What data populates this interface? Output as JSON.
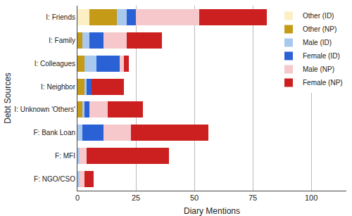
{
  "chart_data": {
    "type": "bar",
    "orientation": "horizontal",
    "stacked": true,
    "grid": true,
    "legend": "top right",
    "x_label": "Diary Mentions",
    "y_label": "Debt Sources",
    "categories": [
      "I: Friends",
      "I: Family",
      "I: Colleagues",
      "I: Neighbor",
      "I: Unknown 'Others'",
      "F: Bank Loan",
      "F: MFI",
      "F: NGO/CSO"
    ],
    "series": [
      {
        "name": "Other (ID)",
        "color": "#fcefc4",
        "values": [
          5,
          0,
          0,
          0,
          0,
          0,
          0,
          0
        ]
      },
      {
        "name": "Other (NP)",
        "color": "#c49a17",
        "values": [
          12,
          2,
          3,
          3,
          2,
          0,
          0,
          0
        ]
      },
      {
        "name": "Male (ID)",
        "color": "#a9c8ee",
        "values": [
          4,
          3,
          5,
          1,
          1,
          2,
          1,
          1
        ]
      },
      {
        "name": "Female (ID)",
        "color": "#2a62d6",
        "values": [
          4,
          6,
          10,
          2,
          2,
          9,
          0,
          0
        ]
      },
      {
        "name": "Male (NP)",
        "color": "#f6c7cb",
        "values": [
          27,
          10,
          2,
          0,
          8,
          12,
          3,
          2
        ]
      },
      {
        "name": "Female (NP)",
        "color": "#cc1f1f",
        "values": [
          29,
          15,
          2,
          14,
          15,
          33,
          35,
          4
        ]
      }
    ],
    "xlim": [
      0,
      115
    ],
    "xticks": [
      0,
      25,
      50,
      75,
      100
    ]
  }
}
